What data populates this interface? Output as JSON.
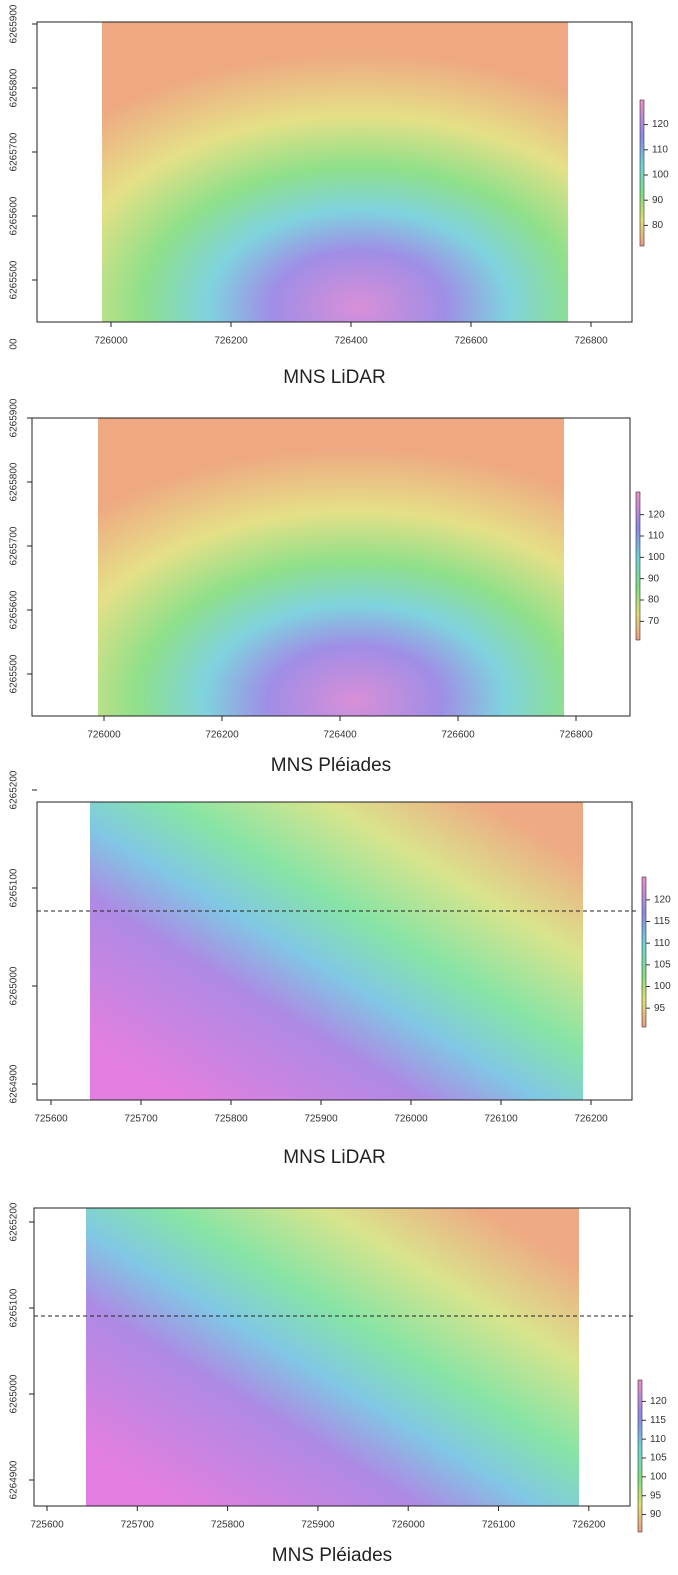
{
  "panels": [
    {
      "title": "MNS LiDAR",
      "xticks": [
        "726000",
        "726200",
        "726400",
        "726600",
        "726800"
      ],
      "yticks": [
        "6265900",
        "6265800",
        "6265700",
        "6265600",
        "6265500"
      ],
      "y_fragment": "00",
      "colorbar": [
        "120",
        "110",
        "100",
        "90",
        "80"
      ]
    },
    {
      "title": "MNS Pléiades",
      "xticks": [
        "726000",
        "726200",
        "726400",
        "726600",
        "726800"
      ],
      "yticks": [
        "6265900",
        "6265800",
        "6265700",
        "6265600",
        "6265500"
      ],
      "colorbar": [
        "120",
        "110",
        "100",
        "90",
        "80",
        "70"
      ]
    },
    {
      "title": "MNS LiDAR",
      "xticks": [
        "725600",
        "725700",
        "725800",
        "725900",
        "726000",
        "726100",
        "726200"
      ],
      "yticks": [
        "6265200",
        "6265100",
        "6265000",
        "6264900"
      ],
      "colorbar": [
        "120",
        "115",
        "110",
        "105",
        "100",
        "95"
      ]
    },
    {
      "title": "MNS Pléiades",
      "xticks": [
        "725600",
        "725700",
        "725800",
        "725900",
        "726000",
        "726100",
        "726200"
      ],
      "yticks": [
        "6265200",
        "6265100",
        "6265000",
        "6264900"
      ],
      "colorbar": [
        "120",
        "115",
        "110",
        "105",
        "100",
        "95",
        "90"
      ]
    }
  ]
}
